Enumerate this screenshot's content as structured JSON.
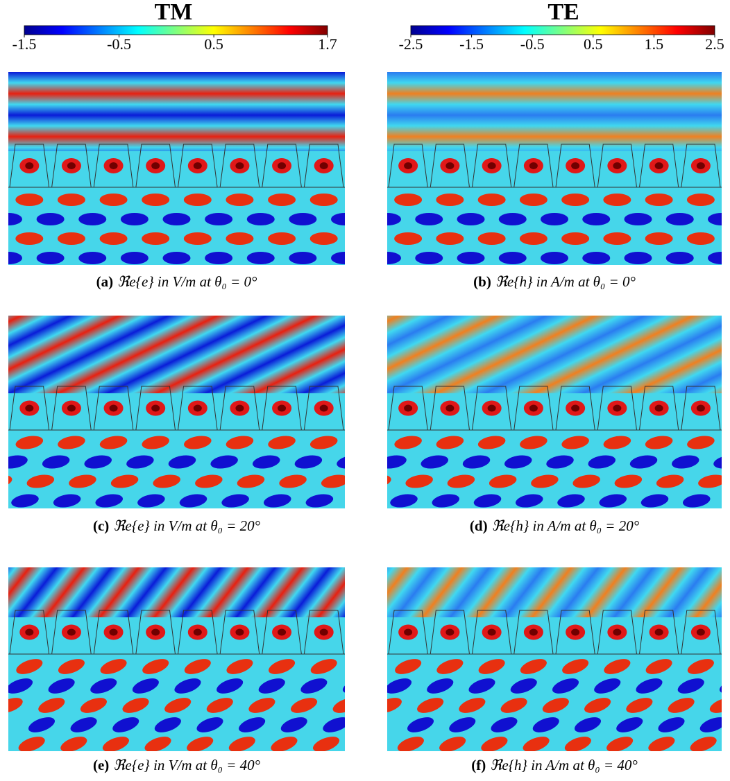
{
  "colorbars": [
    {
      "title": "TM",
      "range": [
        -1.5,
        1.7
      ],
      "ticks": [
        -1.5,
        -0.5,
        0.5,
        1.7
      ]
    },
    {
      "title": "TE",
      "range": [
        -2.5,
        2.5
      ],
      "ticks": [
        -2.5,
        -1.5,
        -0.5,
        0.5,
        1.5,
        2.5
      ]
    }
  ],
  "panels": [
    {
      "label": "(a)",
      "caption": "ℜe{e} in V/m at θ₀ = 0°"
    },
    {
      "label": "(b)",
      "caption": "ℜe{h} in A/m at θ₀ = 0°"
    },
    {
      "label": "(c)",
      "caption": "ℜe{e} in V/m at θ₀ = 20°"
    },
    {
      "label": "(d)",
      "caption": "ℜe{h} in A/m at θ₀ = 20°"
    },
    {
      "label": "(e)",
      "caption": "ℜe{e} in V/m at θ₀ = 40°"
    },
    {
      "label": "(f)",
      "caption": "ℜe{h} in A/m at θ₀ = 40°"
    }
  ]
}
